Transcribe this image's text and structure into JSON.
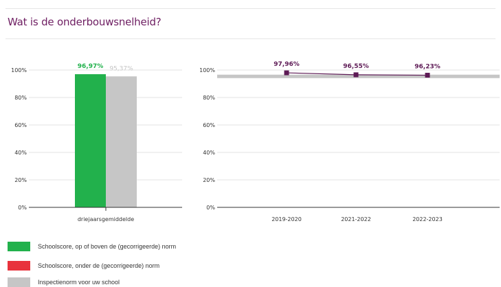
{
  "title": "Wat is de onderbouwsnelheid?",
  "colors": {
    "above_norm": "#22b14c",
    "below_norm": "#e8323c",
    "norm": "#c6c6c6",
    "trend": "#5d1a55",
    "title": "#6e1e62"
  },
  "chart_data": [
    {
      "type": "bar",
      "categories": [
        "driejaarsgemiddelde"
      ],
      "series": [
        {
          "name": "Schoolscore, op of boven de (gecorrigeerde) norm",
          "values": [
            96.97
          ],
          "labels": [
            "96,97%"
          ]
        },
        {
          "name": "Inspectienorm voor uw school",
          "values": [
            95.37
          ],
          "labels": [
            "95,37%"
          ]
        }
      ],
      "ylim": [
        0,
        100
      ],
      "yticks": [
        0,
        20,
        40,
        60,
        80,
        100
      ],
      "ytick_labels": [
        "0%",
        "20%",
        "40%",
        "60%",
        "80%",
        "100%"
      ]
    },
    {
      "type": "line",
      "categories": [
        "2019-2020",
        "2021-2022",
        "2022-2023"
      ],
      "values": [
        97.96,
        96.55,
        96.23
      ],
      "labels": [
        "97,96%",
        "96,55%",
        "96,23%"
      ],
      "norm": 95.37,
      "ylim": [
        0,
        100
      ],
      "yticks": [
        0,
        20,
        40,
        60,
        80,
        100
      ],
      "ytick_labels": [
        "0%",
        "20%",
        "40%",
        "60%",
        "80%",
        "100%"
      ]
    }
  ],
  "legend": [
    {
      "label": "Schoolscore, op of boven de (gecorrigeerde) norm",
      "color": "#22b14c"
    },
    {
      "label": "Schoolscore, onder de (gecorrigeerde) norm",
      "color": "#e8323c"
    },
    {
      "label": "Inspectienorm voor uw school",
      "color": "#c6c6c6"
    }
  ]
}
